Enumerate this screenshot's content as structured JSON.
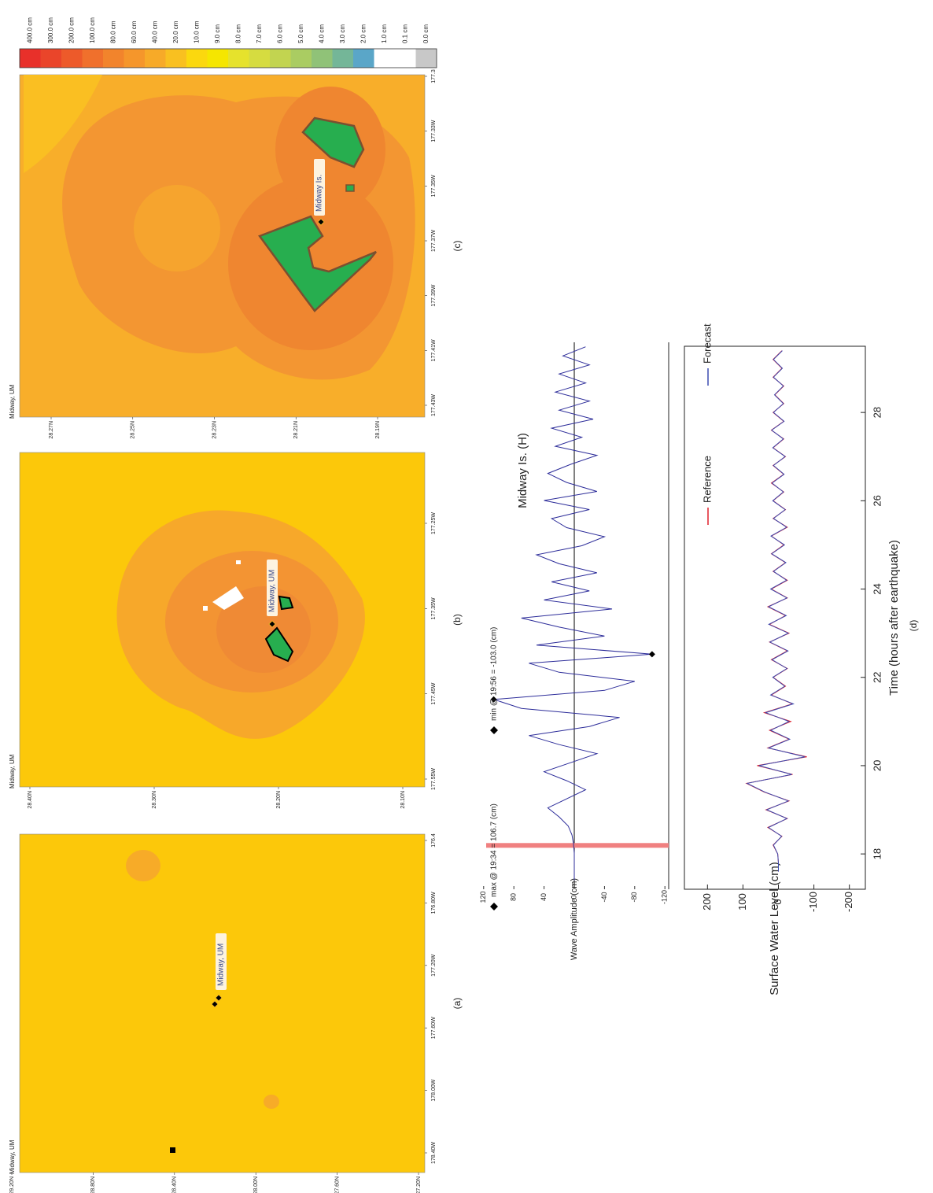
{
  "panels": [
    {
      "caption": "(a)",
      "title": "Midway, UM",
      "place": "Midway, UM",
      "lat_labels": [
        "29.20N",
        "28.80N",
        "28.40N",
        "28.00N",
        "27.60N",
        "27.20N"
      ],
      "lon_labels": [
        "178.40W",
        "178.00W",
        "177.60W",
        "177.20W",
        "176.80W",
        "176.4"
      ]
    },
    {
      "caption": "(b)",
      "title": "Midway, UM",
      "place": "Midway, UM",
      "lat_labels": [
        "28.40N",
        "28.30N",
        "28.20N",
        "28.10N"
      ],
      "lon_labels": [
        "177.55W",
        "177.45W",
        "177.35W",
        "177.25W"
      ]
    },
    {
      "caption": "(c)",
      "title": "Midway, UM",
      "place": "Midway Is.",
      "lat_labels": [
        "28.27N",
        "28.25N",
        "28.23N",
        "28.21N",
        "28.19N"
      ],
      "lon_labels": [
        "177.43W",
        "177.41W",
        "177.39W",
        "177.37W",
        "177.35W",
        "177.33W",
        "177.3"
      ]
    }
  ],
  "colorbar": {
    "labels": [
      "400.0 cm",
      "300.0 cm",
      "200.0 cm",
      "100.0 cm",
      "80.0 cm",
      "60.0 cm",
      "40.0 cm",
      "20.0 cm",
      "10.0 cm",
      "9.0 cm",
      "8.0 cm",
      "7.0 cm",
      "6.0 cm",
      "5.0 cm",
      "4.0 cm",
      "3.0 cm",
      "2.0 cm",
      "1.0 cm",
      "0.1 cm",
      "0.0 cm"
    ],
    "colors": [
      "#e8302a",
      "#ea452a",
      "#ed5a2a",
      "#f0702c",
      "#f2842c",
      "#f5962b",
      "#f7aa28",
      "#f9c020",
      "#fbd80e",
      "#f5e600",
      "#e6e22c",
      "#d6dc40",
      "#c2d450",
      "#aacc62",
      "#90c278",
      "#74b698",
      "#5aa6c8",
      "#ffffff",
      "#ffffff",
      "#c8c8c8"
    ]
  },
  "chart_data": [
    {
      "type": "line",
      "title": "Midway Is. (H)",
      "y_label": "Wave Amplitude (cm)",
      "color": "#2d2d9a",
      "x": [
        16.8,
        17.0,
        17.2,
        17.4,
        17.6,
        17.8,
        18.0,
        18.2,
        18.4,
        18.6,
        18.8,
        19.0,
        19.2,
        19.4,
        19.6,
        19.8,
        20.0,
        20.2,
        20.4,
        20.6,
        20.8,
        21.0,
        21.2,
        21.4,
        21.6,
        21.8,
        22.0,
        22.2,
        22.4,
        22.6,
        22.8,
        23.0,
        23.2,
        23.4,
        23.6,
        23.8,
        24.0,
        24.2,
        24.4,
        24.6,
        24.8,
        25.0,
        25.2,
        25.4,
        25.6,
        25.8,
        26.0,
        26.2,
        26.4,
        26.6,
        26.8,
        27.0,
        27.2,
        27.4,
        27.6,
        27.8,
        28.0,
        28.2,
        28.4,
        28.6
      ],
      "values": [
        0,
        0,
        0,
        0,
        1,
        3,
        8,
        20,
        35,
        10,
        -15,
        10,
        40,
        5,
        -30,
        20,
        60,
        -20,
        -60,
        70,
        106.7,
        -40,
        -80,
        20,
        60,
        -103.0,
        50,
        -40,
        20,
        70,
        -50,
        40,
        -20,
        30,
        -30,
        20,
        50,
        -10,
        -40,
        10,
        30,
        -20,
        40,
        -30,
        10,
        35,
        5,
        -30,
        25,
        -10,
        30,
        -25,
        20,
        -20,
        25,
        -15,
        20,
        -20,
        15,
        -15
      ],
      "xlim": [
        16.6,
        28.7
      ],
      "ylim": [
        -125,
        125
      ],
      "yticks": [
        120,
        80,
        40,
        0,
        -40,
        -80,
        -120
      ],
      "markers": [
        {
          "label": "max @ 19:34 = 106.7 (cm)",
          "x": 20.8,
          "y": 106.7
        },
        {
          "label": "min @ 19:56 = -103.0 (cm)",
          "x": 21.8,
          "y": -103.0
        }
      ],
      "arrival_x": 17.57,
      "arrival_color": "#f08080"
    },
    {
      "type": "line",
      "x_label": "Time (hours after earthquake)",
      "y_label": "Surface Water Level (cm)",
      "x": [
        17.6,
        17.8,
        18.0,
        18.2,
        18.4,
        18.6,
        18.8,
        19.0,
        19.2,
        19.4,
        19.6,
        19.8,
        20.0,
        20.2,
        20.4,
        20.6,
        20.8,
        21.0,
        21.2,
        21.4,
        21.6,
        21.8,
        22.0,
        22.2,
        22.4,
        22.6,
        22.8,
        23.0,
        23.2,
        23.4,
        23.6,
        23.8,
        24.0,
        24.2,
        24.4,
        24.6,
        24.8,
        25.0,
        25.2,
        25.4,
        25.6,
        25.8,
        26.0,
        26.2,
        26.4,
        26.6,
        26.8,
        27.0,
        27.2,
        27.4,
        27.6,
        27.8,
        28.0,
        28.2,
        28.4,
        28.6,
        28.8,
        29.0,
        29.2,
        29.4
      ],
      "series": [
        {
          "name": "Reference",
          "color": "#e0202a",
          "values": [
            0,
            0,
            2,
            15,
            -10,
            30,
            -25,
            35,
            -30,
            40,
            90,
            -40,
            60,
            -80,
            30,
            -30,
            25,
            -35,
            40,
            -40,
            20,
            -20,
            15,
            -25,
            20,
            -25,
            25,
            -30,
            25,
            -20,
            30,
            -25,
            20,
            -25,
            15,
            -20,
            20,
            -15,
            20,
            -25,
            15,
            -20,
            15,
            -15,
            20,
            -15,
            15,
            -20,
            15,
            -15,
            20,
            -15,
            15,
            -15,
            10,
            -15,
            15,
            -10,
            15,
            -10
          ]
        },
        {
          "name": "Forecast",
          "color": "#3a4ab0",
          "values": [
            0,
            0,
            2,
            14,
            -9,
            28,
            -24,
            33,
            -28,
            38,
            88,
            -38,
            55,
            -75,
            28,
            -32,
            22,
            -30,
            36,
            -42,
            22,
            -18,
            16,
            -24,
            18,
            -27,
            24,
            -28,
            27,
            -22,
            28,
            -24,
            22,
            -23,
            14,
            -21,
            19,
            -17,
            21,
            -23,
            14,
            -19,
            16,
            -14,
            18,
            -16,
            14,
            -19,
            16,
            -14,
            19,
            -16,
            14,
            -14,
            11,
            -14,
            14,
            -11,
            14,
            -11
          ]
        }
      ],
      "xlim": [
        17.2,
        29.5
      ],
      "ylim": [
        -245,
        265
      ],
      "xticks": [
        18,
        20,
        22,
        24,
        26,
        28
      ],
      "yticks": [
        200,
        100,
        0,
        -100,
        -200
      ]
    }
  ],
  "caption_d": "(d)"
}
